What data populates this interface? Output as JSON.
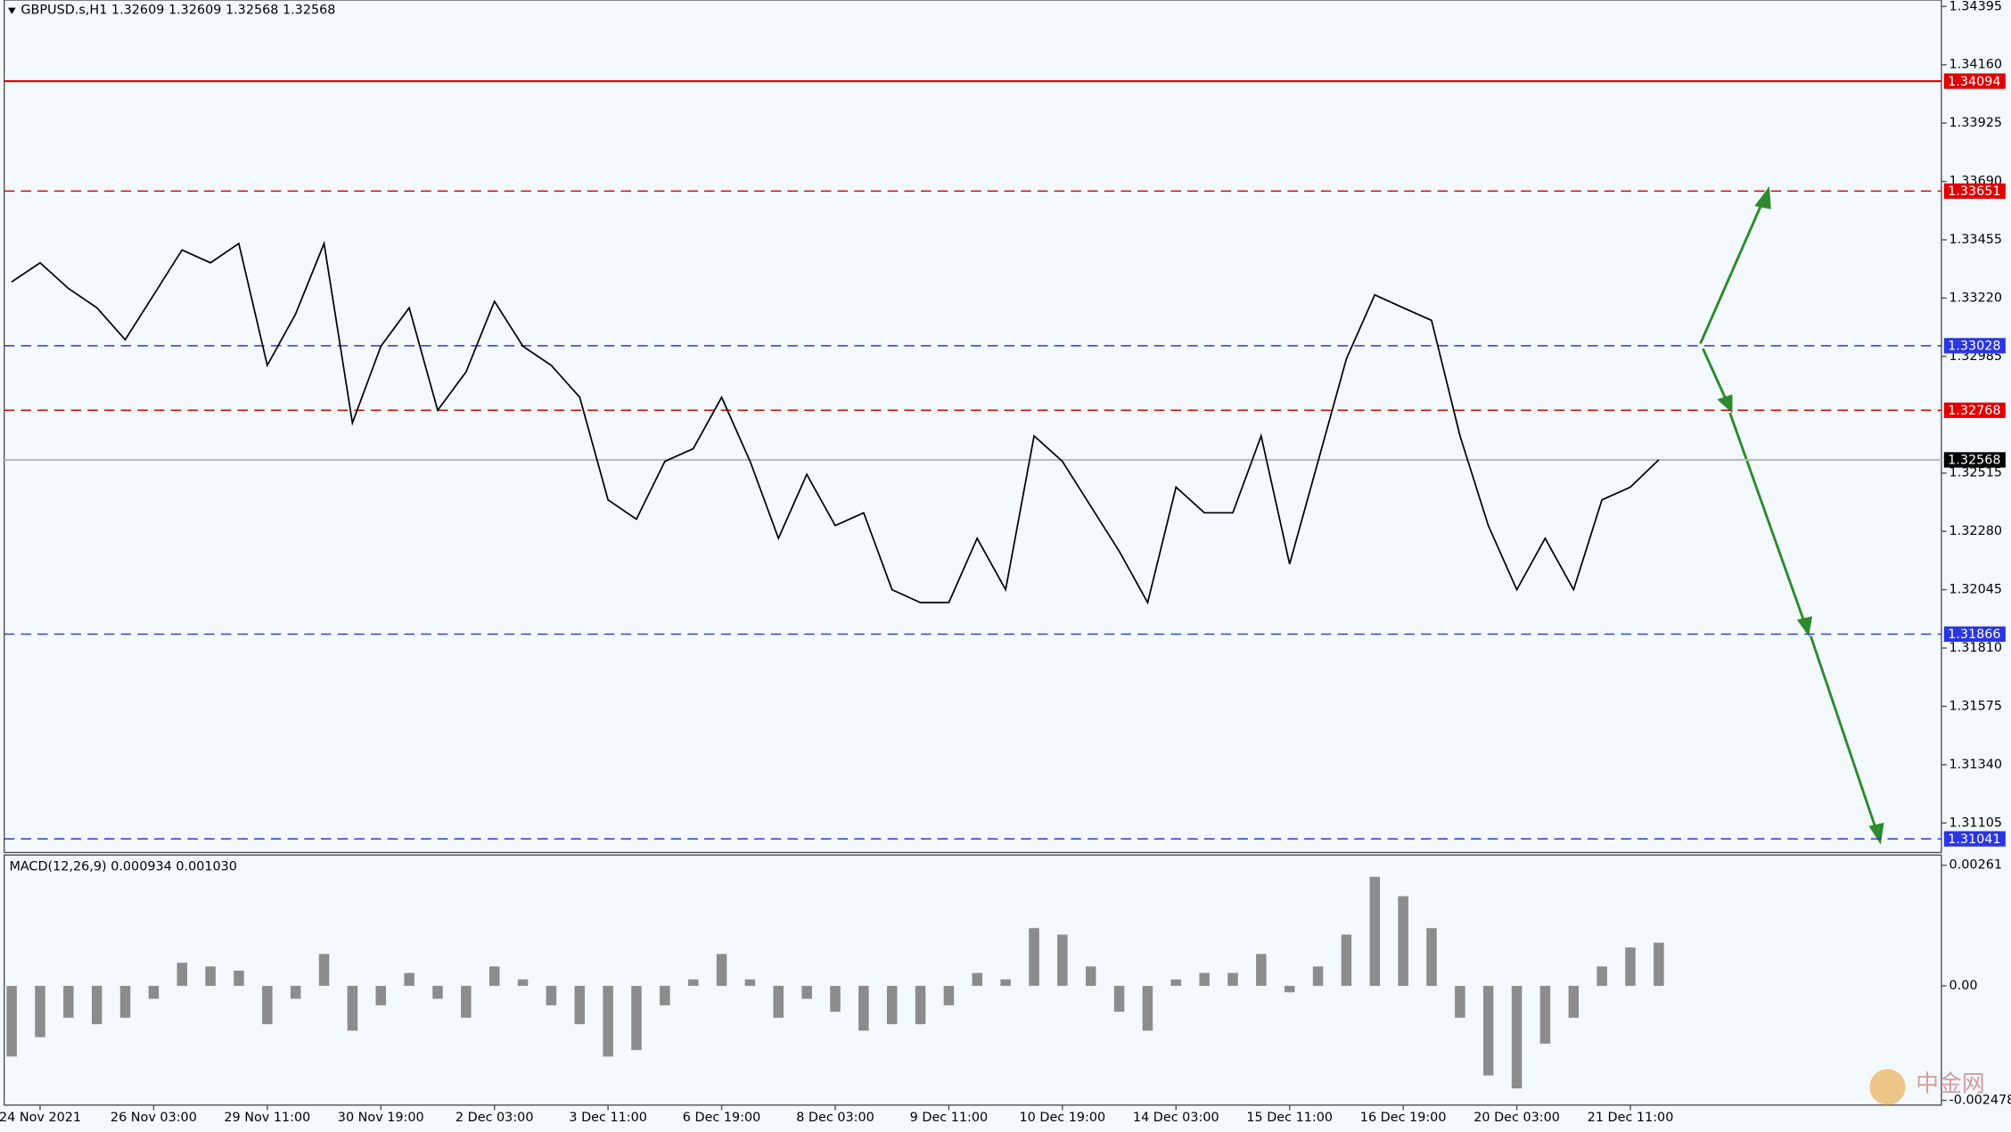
{
  "chart_data": [
    {
      "type": "line",
      "title": "GBPUSD.s,H1  1.32609 1.32609 1.32568 1.32568",
      "categories": [
        null,
        "24 Nov 2021",
        null,
        null,
        null,
        "26 Nov 03:00",
        null,
        null,
        null,
        "29 Nov 11:00",
        null,
        null,
        null,
        "30 Nov 19:00",
        null,
        null,
        null,
        "2 Dec 03:00",
        null,
        null,
        null,
        "3 Dec 11:00",
        null,
        null,
        null,
        "6 Dec 19:00",
        null,
        null,
        null,
        "8 Dec 03:00",
        null,
        null,
        null,
        "9 Dec 11:00",
        null,
        null,
        null,
        "10 Dec 19:00",
        null,
        null,
        null,
        "14 Dec 03:00",
        null,
        null,
        null,
        "15 Dec 11:00",
        null,
        null,
        null,
        "16 Dec 19:00",
        null,
        null,
        null,
        "20 Dec 03:00",
        null,
        null,
        null,
        "21 Dec 11:00",
        null
      ],
      "series": [
        {
          "color": "#000000",
          "values": [
            1.33285,
            1.33362,
            1.33259,
            1.33181,
            1.33052,
            1.33233,
            1.33414,
            1.33362,
            1.3344,
            1.32949,
            1.33156,
            1.3344,
            1.32717,
            1.33026,
            1.33181,
            1.32768,
            1.32923,
            1.33207,
            1.33026,
            1.32949,
            1.3282,
            1.32407,
            1.32329,
            1.32562,
            1.32613,
            1.3282,
            1.32562,
            1.32252,
            1.3251,
            1.32303,
            1.32355,
            1.32045,
            1.31993,
            1.31993,
            1.32252,
            1.32045,
            1.32665,
            1.32562,
            1.32381,
            1.322,
            1.31993,
            1.32458,
            1.32355,
            1.32355,
            1.32665,
            1.32148,
            1.32562,
            1.32975,
            1.33233,
            1.33181,
            1.3313,
            1.32665,
            1.32303,
            1.32045,
            1.32252,
            1.32045,
            1.32407,
            1.32458,
            1.32568
          ]
        }
      ],
      "ylim": [
        1.30986,
        1.34421
      ],
      "yticks": [
        {
          "value": 1.34395,
          "label": "1.34395"
        },
        {
          "value": 1.3416,
          "label": "1.34160"
        },
        {
          "value": 1.33925,
          "label": "1.33925"
        },
        {
          "value": 1.3369,
          "label": "1.33690"
        },
        {
          "value": 1.33455,
          "label": "1.33455"
        },
        {
          "value": 1.3322,
          "label": "1.33220"
        },
        {
          "value": 1.32985,
          "label": "1.32985"
        },
        {
          "value": 1.32515,
          "label": "1.32515"
        },
        {
          "value": 1.3228,
          "label": "1.32280"
        },
        {
          "value": 1.32045,
          "label": "1.32045"
        },
        {
          "value": 1.3181,
          "label": "1.31810"
        },
        {
          "value": 1.31575,
          "label": "1.31575"
        },
        {
          "value": 1.3134,
          "label": "1.31340"
        },
        {
          "value": 1.31105,
          "label": "1.31105"
        }
      ],
      "levels": [
        {
          "value": 1.34094,
          "color": "#e00000",
          "dashed": false
        },
        {
          "value": 1.33651,
          "color": "#e00000",
          "dashed": true
        },
        {
          "value": 1.33028,
          "color": "#2a36e0",
          "dashed": true
        },
        {
          "value": 1.32768,
          "color": "#e00000",
          "dashed": true
        },
        {
          "value": 1.32568,
          "color": "#000000",
          "dashed": false
        },
        {
          "value": 1.31866,
          "color": "#2a36e0",
          "dashed": true
        },
        {
          "value": 1.31041,
          "color": "#2a36e0",
          "dashed": true
        }
      ],
      "watermark": "中金网"
    },
    {
      "type": "bar",
      "title": "MACD(12,26,9) 0.000934 0.001030",
      "color": "#8c8c8c",
      "values": [
        -0.00153,
        -0.00111,
        -0.00069,
        -0.00083,
        -0.00069,
        -0.00028,
        0.0005,
        0.00042,
        0.00033,
        -0.00083,
        -0.00028,
        0.00069,
        -0.00097,
        -0.00042,
        0.00028,
        -0.00028,
        -0.00069,
        0.00042,
        0.00014,
        -0.00042,
        -0.00083,
        -0.00153,
        -0.00139,
        -0.00042,
        0.00014,
        0.00069,
        0.00014,
        -0.00069,
        -0.00028,
        -0.00056,
        -0.00097,
        -0.00083,
        -0.00083,
        -0.00042,
        0.00028,
        0.00014,
        0.00125,
        0.00111,
        0.00042,
        -0.00056,
        -0.00097,
        0.00014,
        0.00028,
        0.00028,
        0.00069,
        -0.00014,
        0.00042,
        0.00111,
        0.00236,
        0.00194,
        0.00125,
        -0.00069,
        -0.00194,
        -0.00222,
        -0.00125,
        -0.00069,
        0.00042,
        0.00083,
        0.000934
      ],
      "ylim": [
        -0.00258,
        0.00283
      ],
      "yticks": [
        {
          "value": 0.00261,
          "label": "0.00261"
        },
        {
          "value": 0,
          "label": "0.00"
        },
        {
          "value": -0.002478,
          "label": "-0.002478"
        }
      ]
    }
  ]
}
